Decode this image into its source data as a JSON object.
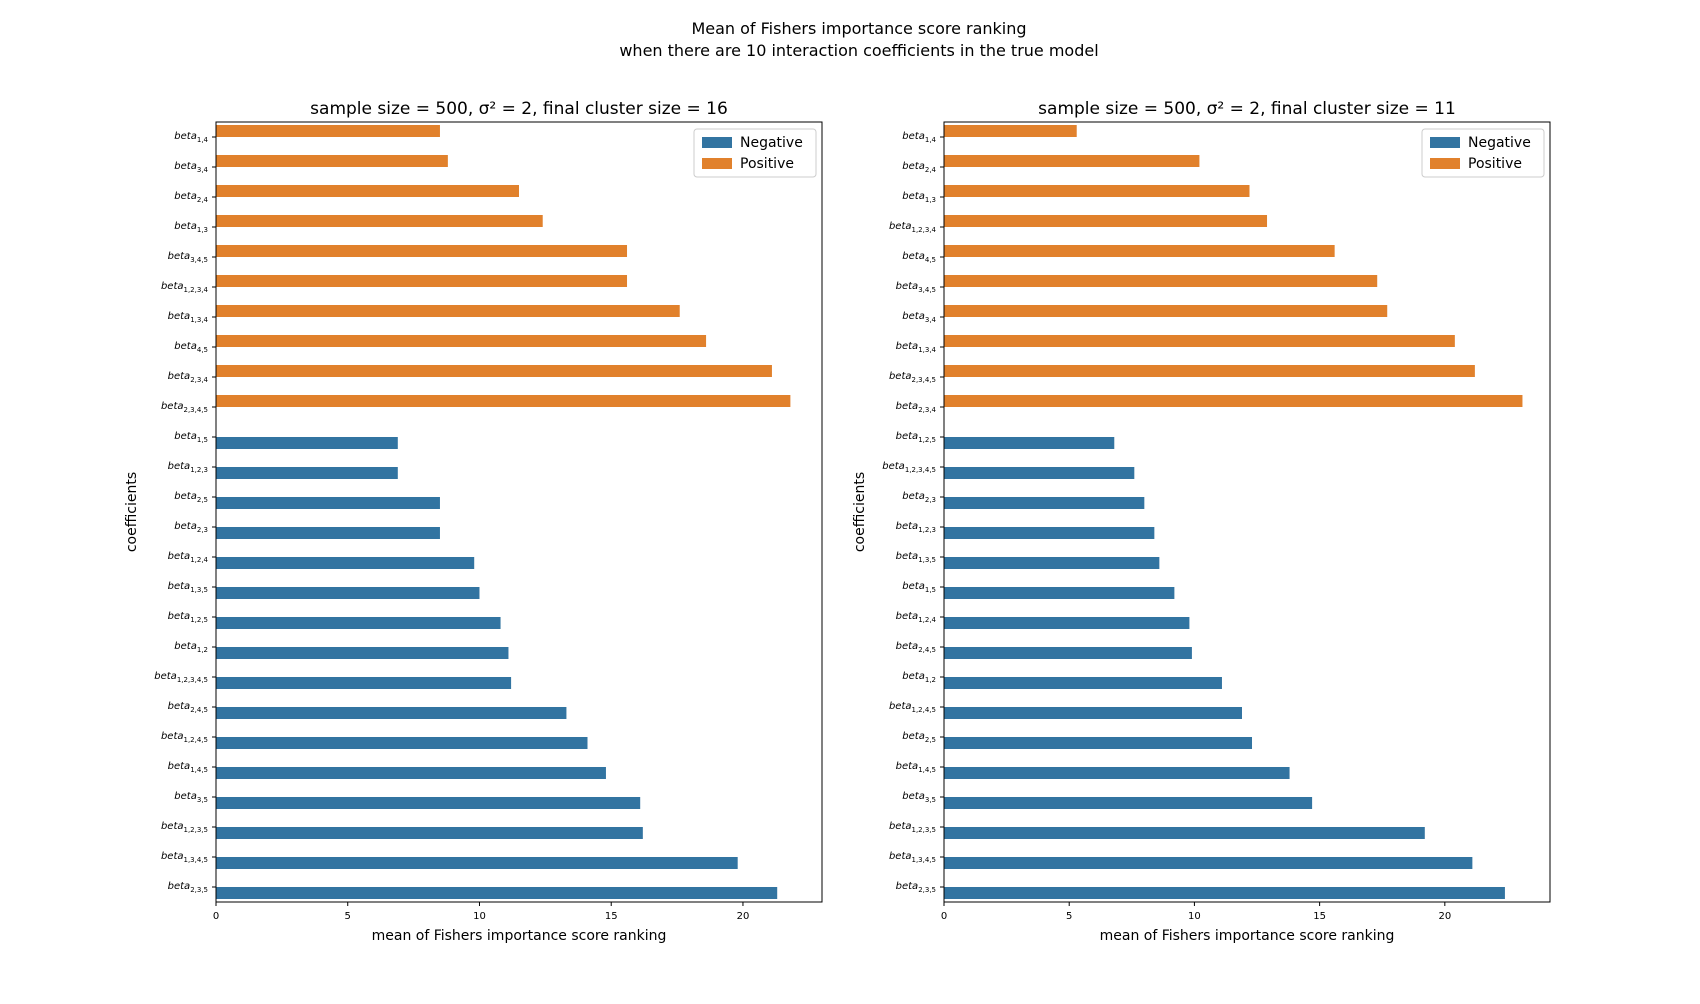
{
  "figure": {
    "title_line1": "Mean of Fishers importance score ranking",
    "title_line2": "when there are 10 interaction coefficients in the true model"
  },
  "colors": {
    "negative": "#3274a1",
    "positive": "#e1812c"
  },
  "chart_data": [
    {
      "type": "bar",
      "orientation": "horizontal",
      "title": "sample size = 500, σ² = 2, final cluster size = 16",
      "xlabel": "mean of Fishers importance score ranking",
      "ylabel": "coefficients",
      "xlim": [
        0,
        23
      ],
      "xticks": [
        0,
        5,
        10,
        15,
        20
      ],
      "legend": {
        "position": "top-right",
        "entries": [
          "Negative",
          "Positive"
        ]
      },
      "grid": false,
      "bars": [
        {
          "label": "beta_{1,4}",
          "group": "Positive",
          "value": 8.5
        },
        {
          "label": "beta_{3,4}",
          "group": "Positive",
          "value": 8.8
        },
        {
          "label": "beta_{2,4}",
          "group": "Positive",
          "value": 11.5
        },
        {
          "label": "beta_{1,3}",
          "group": "Positive",
          "value": 12.4
        },
        {
          "label": "beta_{3,4,5}",
          "group": "Positive",
          "value": 15.6
        },
        {
          "label": "beta_{1,2,3,4}",
          "group": "Positive",
          "value": 15.6
        },
        {
          "label": "beta_{1,3,4}",
          "group": "Positive",
          "value": 17.6
        },
        {
          "label": "beta_{4,5}",
          "group": "Positive",
          "value": 18.6
        },
        {
          "label": "beta_{2,3,4}",
          "group": "Positive",
          "value": 21.1
        },
        {
          "label": "beta_{2,3,4,5}",
          "group": "Positive",
          "value": 21.8
        },
        {
          "label": "beta_{1,5}",
          "group": "Negative",
          "value": 6.9
        },
        {
          "label": "beta_{1,2,3}",
          "group": "Negative",
          "value": 6.9
        },
        {
          "label": "beta_{2,5}",
          "group": "Negative",
          "value": 8.5
        },
        {
          "label": "beta_{2,3}",
          "group": "Negative",
          "value": 8.5
        },
        {
          "label": "beta_{1,2,4}",
          "group": "Negative",
          "value": 9.8
        },
        {
          "label": "beta_{1,3,5}",
          "group": "Negative",
          "value": 10.0
        },
        {
          "label": "beta_{1,2,5}",
          "group": "Negative",
          "value": 10.8
        },
        {
          "label": "beta_{1,2}",
          "group": "Negative",
          "value": 11.1
        },
        {
          "label": "beta_{1,2,3,4,5}",
          "group": "Negative",
          "value": 11.2
        },
        {
          "label": "beta_{2,4,5}",
          "group": "Negative",
          "value": 13.3
        },
        {
          "label": "beta_{1,2,4,5}",
          "group": "Negative",
          "value": 14.1
        },
        {
          "label": "beta_{1,4,5}",
          "group": "Negative",
          "value": 14.8
        },
        {
          "label": "beta_{3,5}",
          "group": "Negative",
          "value": 16.1
        },
        {
          "label": "beta_{1,2,3,5}",
          "group": "Negative",
          "value": 16.2
        },
        {
          "label": "beta_{1,3,4,5}",
          "group": "Negative",
          "value": 19.8
        },
        {
          "label": "beta_{2,3,5}",
          "group": "Negative",
          "value": 21.3
        }
      ]
    },
    {
      "type": "bar",
      "orientation": "horizontal",
      "title": "sample size = 500, σ² = 2, final cluster size = 11",
      "xlabel": "mean of Fishers importance score ranking",
      "ylabel": "coefficients",
      "xlim": [
        0,
        24.2
      ],
      "xticks": [
        0,
        5,
        10,
        15,
        20
      ],
      "legend": {
        "position": "top-right",
        "entries": [
          "Negative",
          "Positive"
        ]
      },
      "grid": false,
      "bars": [
        {
          "label": "beta_{1,4}",
          "group": "Positive",
          "value": 5.3
        },
        {
          "label": "beta_{2,4}",
          "group": "Positive",
          "value": 10.2
        },
        {
          "label": "beta_{1,3}",
          "group": "Positive",
          "value": 12.2
        },
        {
          "label": "beta_{1,2,3,4}",
          "group": "Positive",
          "value": 12.9
        },
        {
          "label": "beta_{4,5}",
          "group": "Positive",
          "value": 15.6
        },
        {
          "label": "beta_{3,4,5}",
          "group": "Positive",
          "value": 17.3
        },
        {
          "label": "beta_{3,4}",
          "group": "Positive",
          "value": 17.7
        },
        {
          "label": "beta_{1,3,4}",
          "group": "Positive",
          "value": 20.4
        },
        {
          "label": "beta_{2,3,4,5}",
          "group": "Positive",
          "value": 21.2
        },
        {
          "label": "beta_{2,3,4}",
          "group": "Positive",
          "value": 23.1
        },
        {
          "label": "beta_{1,2,5}",
          "group": "Negative",
          "value": 6.8
        },
        {
          "label": "beta_{1,2,3,4,5}",
          "group": "Negative",
          "value": 7.6
        },
        {
          "label": "beta_{2,3}",
          "group": "Negative",
          "value": 8.0
        },
        {
          "label": "beta_{1,2,3}",
          "group": "Negative",
          "value": 8.4
        },
        {
          "label": "beta_{1,3,5}",
          "group": "Negative",
          "value": 8.6
        },
        {
          "label": "beta_{1,5}",
          "group": "Negative",
          "value": 9.2
        },
        {
          "label": "beta_{1,2,4}",
          "group": "Negative",
          "value": 9.8
        },
        {
          "label": "beta_{2,4,5}",
          "group": "Negative",
          "value": 9.9
        },
        {
          "label": "beta_{1,2}",
          "group": "Negative",
          "value": 11.1
        },
        {
          "label": "beta_{1,2,4,5}",
          "group": "Negative",
          "value": 11.9
        },
        {
          "label": "beta_{2,5}",
          "group": "Negative",
          "value": 12.3
        },
        {
          "label": "beta_{1,4,5}",
          "group": "Negative",
          "value": 13.8
        },
        {
          "label": "beta_{3,5}",
          "group": "Negative",
          "value": 14.7
        },
        {
          "label": "beta_{1,2,3,5}",
          "group": "Negative",
          "value": 19.2
        },
        {
          "label": "beta_{1,3,4,5}",
          "group": "Negative",
          "value": 21.1
        },
        {
          "label": "beta_{2,3,5}",
          "group": "Negative",
          "value": 22.4
        }
      ]
    }
  ]
}
